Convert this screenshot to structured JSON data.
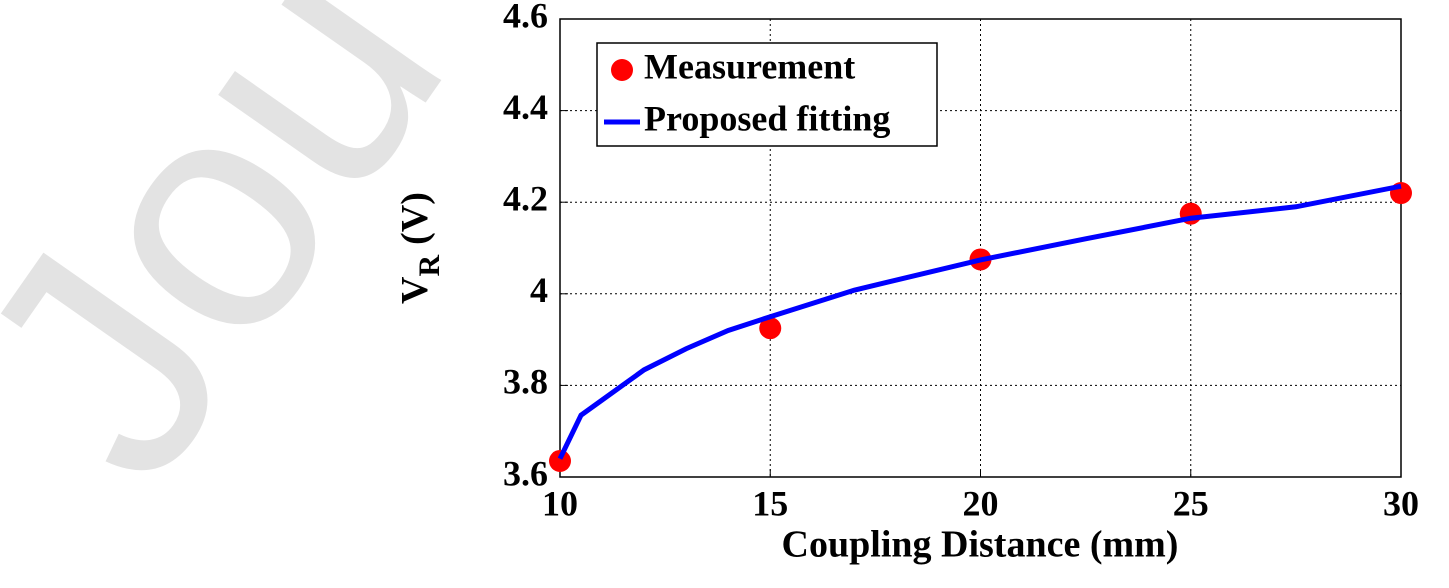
{
  "watermark": "Jou",
  "chart_data": {
    "type": "line",
    "xlabel": "Coupling Distance (mm)",
    "ylabel": {
      "main": "V",
      "sub": "R",
      "unit": "(V)"
    },
    "xlim": [
      10,
      30
    ],
    "xticks": [
      10,
      15,
      20,
      25,
      30
    ],
    "ylim": [
      3.6,
      4.6
    ],
    "yticks": [
      3.6,
      3.8,
      4,
      4.2,
      4.4,
      4.6
    ],
    "grid": true,
    "legend": "upper left",
    "series": [
      {
        "name": "Measurement",
        "color": "#ff0000",
        "style": "markers",
        "x": [
          10,
          15,
          20,
          25,
          30
        ],
        "values": [
          3.635,
          3.925,
          4.075,
          4.175,
          4.22
        ]
      },
      {
        "name": "Proposed fitting",
        "color": "#0000ff",
        "style": "line",
        "x": [
          10,
          10.5,
          11,
          12,
          13,
          14,
          15,
          17,
          20,
          22.5,
          25,
          27.5,
          30
        ],
        "values": [
          3.64,
          3.735,
          3.768,
          3.834,
          3.88,
          3.92,
          3.95,
          4.008,
          4.074,
          4.12,
          4.165,
          4.19,
          4.235
        ]
      }
    ]
  }
}
